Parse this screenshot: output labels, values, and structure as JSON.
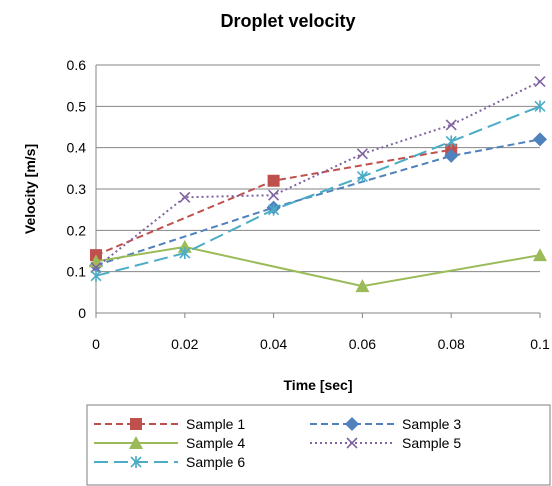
{
  "chart_data": {
    "type": "line",
    "title": "Droplet velocity",
    "xlabel": "Time [sec]",
    "ylabel": "Velocity [m/s]",
    "xlim": [
      0,
      0.1
    ],
    "ylim": [
      0,
      0.6
    ],
    "x_ticks": [
      "0",
      "0.02",
      "0.04",
      "0.06",
      "0.08",
      "0.1"
    ],
    "y_ticks": [
      "0",
      "0.1",
      "0.2",
      "0.3",
      "0.4",
      "0.5",
      "0.6"
    ],
    "grid": "horizontal",
    "legend_position": "bottom",
    "series": [
      {
        "name": "Sample 1",
        "color": "#C0504D",
        "dash": "dashed",
        "marker": "square",
        "x": [
          0,
          0.04,
          0.08
        ],
        "y": [
          0.14,
          0.32,
          0.395
        ]
      },
      {
        "name": "Sample 3",
        "color": "#4F81BD",
        "dash": "dashed",
        "marker": "diamond",
        "x": [
          0,
          0.04,
          0.08,
          0.1
        ],
        "y": [
          0.115,
          0.255,
          0.38,
          0.42
        ]
      },
      {
        "name": "Sample 4",
        "color": "#9BBB59",
        "dash": "solid",
        "marker": "triangle",
        "x": [
          0,
          0.02,
          0.06,
          0.1
        ],
        "y": [
          0.125,
          0.16,
          0.065,
          0.14
        ]
      },
      {
        "name": "Sample 5",
        "color": "#8064A2",
        "dash": "dotted",
        "marker": "x",
        "x": [
          0,
          0.02,
          0.04,
          0.06,
          0.08,
          0.1
        ],
        "y": [
          0.11,
          0.28,
          0.285,
          0.385,
          0.455,
          0.56
        ]
      },
      {
        "name": "Sample 6",
        "color": "#4BACC6",
        "dash": "longdash",
        "marker": "star",
        "x": [
          0,
          0.02,
          0.04,
          0.06,
          0.08,
          0.1
        ],
        "y": [
          0.09,
          0.145,
          0.25,
          0.33,
          0.415,
          0.5
        ]
      }
    ]
  }
}
